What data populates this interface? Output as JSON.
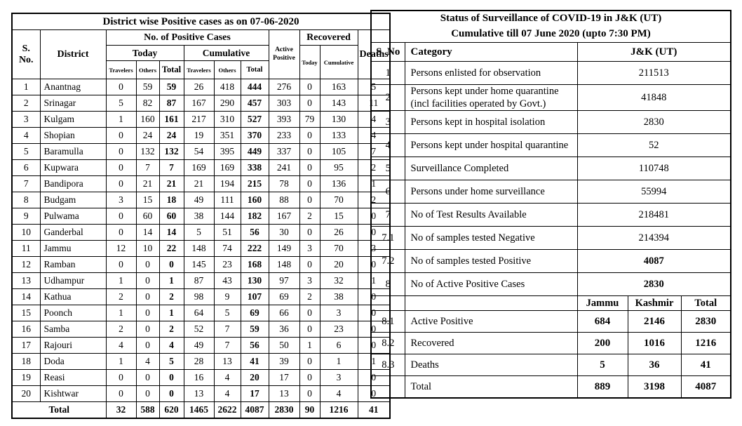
{
  "left_table": {
    "title": "District wise Positive cases as on 07-06-2020",
    "headers": {
      "sno": "S. No.",
      "district": "District",
      "positive_cases": "No. of Positive Cases",
      "today": "Today",
      "cumulative": "Cumulative",
      "travelers": "Travelers",
      "others": "Others",
      "total": "Total",
      "active_positive": "Active Positive",
      "recovered": "Recovered",
      "recovered_today": "Today",
      "recovered_cumulative": "Cumulative",
      "deaths": "Deaths"
    },
    "rows": [
      {
        "sno": "1",
        "district": "Anantnag",
        "today_travelers": "0",
        "today_others": "59",
        "today_total": "59",
        "cum_travelers": "26",
        "cum_others": "418",
        "cum_total": "444",
        "active_positive": "276",
        "recovered_today": "0",
        "recovered_cumulative": "163",
        "deaths": "5"
      },
      {
        "sno": "2",
        "district": "Srinagar",
        "today_travelers": "5",
        "today_others": "82",
        "today_total": "87",
        "cum_travelers": "167",
        "cum_others": "290",
        "cum_total": "457",
        "active_positive": "303",
        "recovered_today": "0",
        "recovered_cumulative": "143",
        "deaths": "11"
      },
      {
        "sno": "3",
        "district": "Kulgam",
        "today_travelers": "1",
        "today_others": "160",
        "today_total": "161",
        "cum_travelers": "217",
        "cum_others": "310",
        "cum_total": "527",
        "active_positive": "393",
        "recovered_today": "79",
        "recovered_cumulative": "130",
        "deaths": "4"
      },
      {
        "sno": "4",
        "district": "Shopian",
        "today_travelers": "0",
        "today_others": "24",
        "today_total": "24",
        "cum_travelers": "19",
        "cum_others": "351",
        "cum_total": "370",
        "active_positive": "233",
        "recovered_today": "0",
        "recovered_cumulative": "133",
        "deaths": "4"
      },
      {
        "sno": "5",
        "district": "Baramulla",
        "today_travelers": "0",
        "today_others": "132",
        "today_total": "132",
        "cum_travelers": "54",
        "cum_others": "395",
        "cum_total": "449",
        "active_positive": "337",
        "recovered_today": "0",
        "recovered_cumulative": "105",
        "deaths": "7"
      },
      {
        "sno": "6",
        "district": "Kupwara",
        "today_travelers": "0",
        "today_others": "7",
        "today_total": "7",
        "cum_travelers": "169",
        "cum_others": "169",
        "cum_total": "338",
        "active_positive": "241",
        "recovered_today": "0",
        "recovered_cumulative": "95",
        "deaths": "2"
      },
      {
        "sno": "7",
        "district": "Bandipora",
        "today_travelers": "0",
        "today_others": "21",
        "today_total": "21",
        "cum_travelers": "21",
        "cum_others": "194",
        "cum_total": "215",
        "active_positive": "78",
        "recovered_today": "0",
        "recovered_cumulative": "136",
        "deaths": "1"
      },
      {
        "sno": "8",
        "district": "Budgam",
        "today_travelers": "3",
        "today_others": "15",
        "today_total": "18",
        "cum_travelers": "49",
        "cum_others": "111",
        "cum_total": "160",
        "active_positive": "88",
        "recovered_today": "0",
        "recovered_cumulative": "70",
        "deaths": "2"
      },
      {
        "sno": "9",
        "district": "Pulwama",
        "today_travelers": "0",
        "today_others": "60",
        "today_total": "60",
        "cum_travelers": "38",
        "cum_others": "144",
        "cum_total": "182",
        "active_positive": "167",
        "recovered_today": "2",
        "recovered_cumulative": "15",
        "deaths": "0"
      },
      {
        "sno": "10",
        "district": "Ganderbal",
        "today_travelers": "0",
        "today_others": "14",
        "today_total": "14",
        "cum_travelers": "5",
        "cum_others": "51",
        "cum_total": "56",
        "active_positive": "30",
        "recovered_today": "0",
        "recovered_cumulative": "26",
        "deaths": "0"
      },
      {
        "sno": "11",
        "district": "Jammu",
        "today_travelers": "12",
        "today_others": "10",
        "today_total": "22",
        "cum_travelers": "148",
        "cum_others": "74",
        "cum_total": "222",
        "active_positive": "149",
        "recovered_today": "3",
        "recovered_cumulative": "70",
        "deaths": "3"
      },
      {
        "sno": "12",
        "district": "Ramban",
        "today_travelers": "0",
        "today_others": "0",
        "today_total": "0",
        "cum_travelers": "145",
        "cum_others": "23",
        "cum_total": "168",
        "active_positive": "148",
        "recovered_today": "0",
        "recovered_cumulative": "20",
        "deaths": "0"
      },
      {
        "sno": "13",
        "district": "Udhampur",
        "today_travelers": "1",
        "today_others": "0",
        "today_total": "1",
        "cum_travelers": "87",
        "cum_others": "43",
        "cum_total": "130",
        "active_positive": "97",
        "recovered_today": "3",
        "recovered_cumulative": "32",
        "deaths": "1"
      },
      {
        "sno": "14",
        "district": "Kathua",
        "today_travelers": "2",
        "today_others": "0",
        "today_total": "2",
        "cum_travelers": "98",
        "cum_others": "9",
        "cum_total": "107",
        "active_positive": "69",
        "recovered_today": "2",
        "recovered_cumulative": "38",
        "deaths": "0"
      },
      {
        "sno": "15",
        "district": "Poonch",
        "today_travelers": "1",
        "today_others": "0",
        "today_total": "1",
        "cum_travelers": "64",
        "cum_others": "5",
        "cum_total": "69",
        "active_positive": "66",
        "recovered_today": "0",
        "recovered_cumulative": "3",
        "deaths": "0"
      },
      {
        "sno": "16",
        "district": "Samba",
        "today_travelers": "2",
        "today_others": "0",
        "today_total": "2",
        "cum_travelers": "52",
        "cum_others": "7",
        "cum_total": "59",
        "active_positive": "36",
        "recovered_today": "0",
        "recovered_cumulative": "23",
        "deaths": "0"
      },
      {
        "sno": "17",
        "district": "Rajouri",
        "today_travelers": "4",
        "today_others": "0",
        "today_total": "4",
        "cum_travelers": "49",
        "cum_others": "7",
        "cum_total": "56",
        "active_positive": "50",
        "recovered_today": "1",
        "recovered_cumulative": "6",
        "deaths": "0"
      },
      {
        "sno": "18",
        "district": "Doda",
        "today_travelers": "1",
        "today_others": "4",
        "today_total": "5",
        "cum_travelers": "28",
        "cum_others": "13",
        "cum_total": "41",
        "active_positive": "39",
        "recovered_today": "0",
        "recovered_cumulative": "1",
        "deaths": "1"
      },
      {
        "sno": "19",
        "district": "Reasi",
        "today_travelers": "0",
        "today_others": "0",
        "today_total": "0",
        "cum_travelers": "16",
        "cum_others": "4",
        "cum_total": "20",
        "active_positive": "17",
        "recovered_today": "0",
        "recovered_cumulative": "3",
        "deaths": "0"
      },
      {
        "sno": "20",
        "district": "Kishtwar",
        "today_travelers": "0",
        "today_others": "0",
        "today_total": "0",
        "cum_travelers": "13",
        "cum_others": "4",
        "cum_total": "17",
        "active_positive": "13",
        "recovered_today": "0",
        "recovered_cumulative": "4",
        "deaths": "0"
      }
    ],
    "total_row": {
      "label": "Total",
      "today_travelers": "32",
      "today_others": "588",
      "today_total": "620",
      "cum_travelers": "1465",
      "cum_others": "2622",
      "cum_total": "4087",
      "active_positive": "2830",
      "recovered_today": "90",
      "recovered_cumulative": "1216",
      "deaths": "41"
    }
  },
  "right_table": {
    "title_line1": "Status of Surveillance of COVID-19 in J&K (UT)",
    "title_line2": "Cumulative till 07 June 2020 (upto 7:30 PM)",
    "headers": {
      "sno": "S. No",
      "category": "Category",
      "value": "J&K (UT)"
    },
    "rows": [
      {
        "sno": "1",
        "category": "Persons enlisted for observation",
        "value": "211513",
        "bold": false
      },
      {
        "sno": "2",
        "category": "Persons kept under home quarantine",
        "category_line2": "(incl facilities operated by Govt.)",
        "value": "41848",
        "bold": false
      },
      {
        "sno": "3",
        "category": "Persons kept in hospital isolation",
        "value": "2830",
        "bold": false
      },
      {
        "sno": "4",
        "category": "Persons kept under hospital quarantine",
        "value": "52",
        "bold": false
      },
      {
        "sno": "5",
        "category": "Surveillance Completed",
        "value": "110748",
        "bold": false
      },
      {
        "sno": "6",
        "category": "Persons under home surveillance",
        "value": "55994",
        "bold": false
      },
      {
        "sno": "7",
        "category": "No of Test Results Available",
        "value": "218481",
        "bold": false
      },
      {
        "sno": "7.1",
        "category": "No of samples tested Negative",
        "value": "214394",
        "bold": false
      },
      {
        "sno": "7.2",
        "category": "No of samples tested Positive",
        "value": "4087",
        "bold": true
      },
      {
        "sno": "8",
        "category": "No of Active Positive Cases",
        "value": "2830",
        "bold": true
      }
    ],
    "region_headers": [
      "Jammu",
      "Kashmir",
      "Total"
    ],
    "region_rows": [
      {
        "sno": "8.1",
        "category": "Active Positive",
        "jammu": "684",
        "kashmir": "2146",
        "total": "2830"
      },
      {
        "sno": "8.2",
        "category": "Recovered",
        "jammu": "200",
        "kashmir": "1016",
        "total": "1216"
      },
      {
        "sno": "8.3",
        "category": "Deaths",
        "jammu": "5",
        "kashmir": "36",
        "total": "41"
      },
      {
        "sno": "",
        "category": "Total",
        "jammu": "889",
        "kashmir": "3198",
        "total": "4087"
      }
    ]
  }
}
